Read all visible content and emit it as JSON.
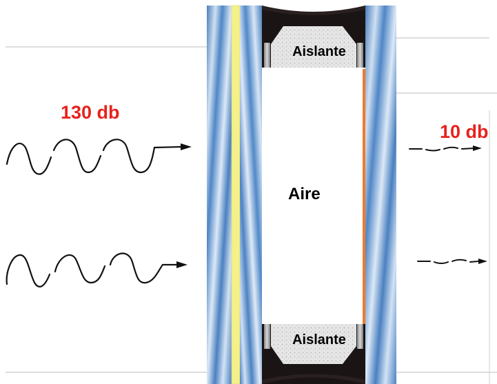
{
  "labels": {
    "input_level": "130 db",
    "output_level": "10 db",
    "air": "Aire",
    "insulation_top": "Aislante",
    "insulation_bottom": "Aislante"
  },
  "colors": {
    "level_text": "#e8211c",
    "glass_blue": "#5b8fc7",
    "glass_light": "#dbe8f6",
    "inner_film": "#f4f08a",
    "inner_coating": "#f07a2a",
    "seal": "#1a1414",
    "insulation": "#e4e4e4"
  },
  "icons": [
    "sound-wave-icon",
    "attenuated-wave-icon",
    "arrow-right-icon"
  ]
}
